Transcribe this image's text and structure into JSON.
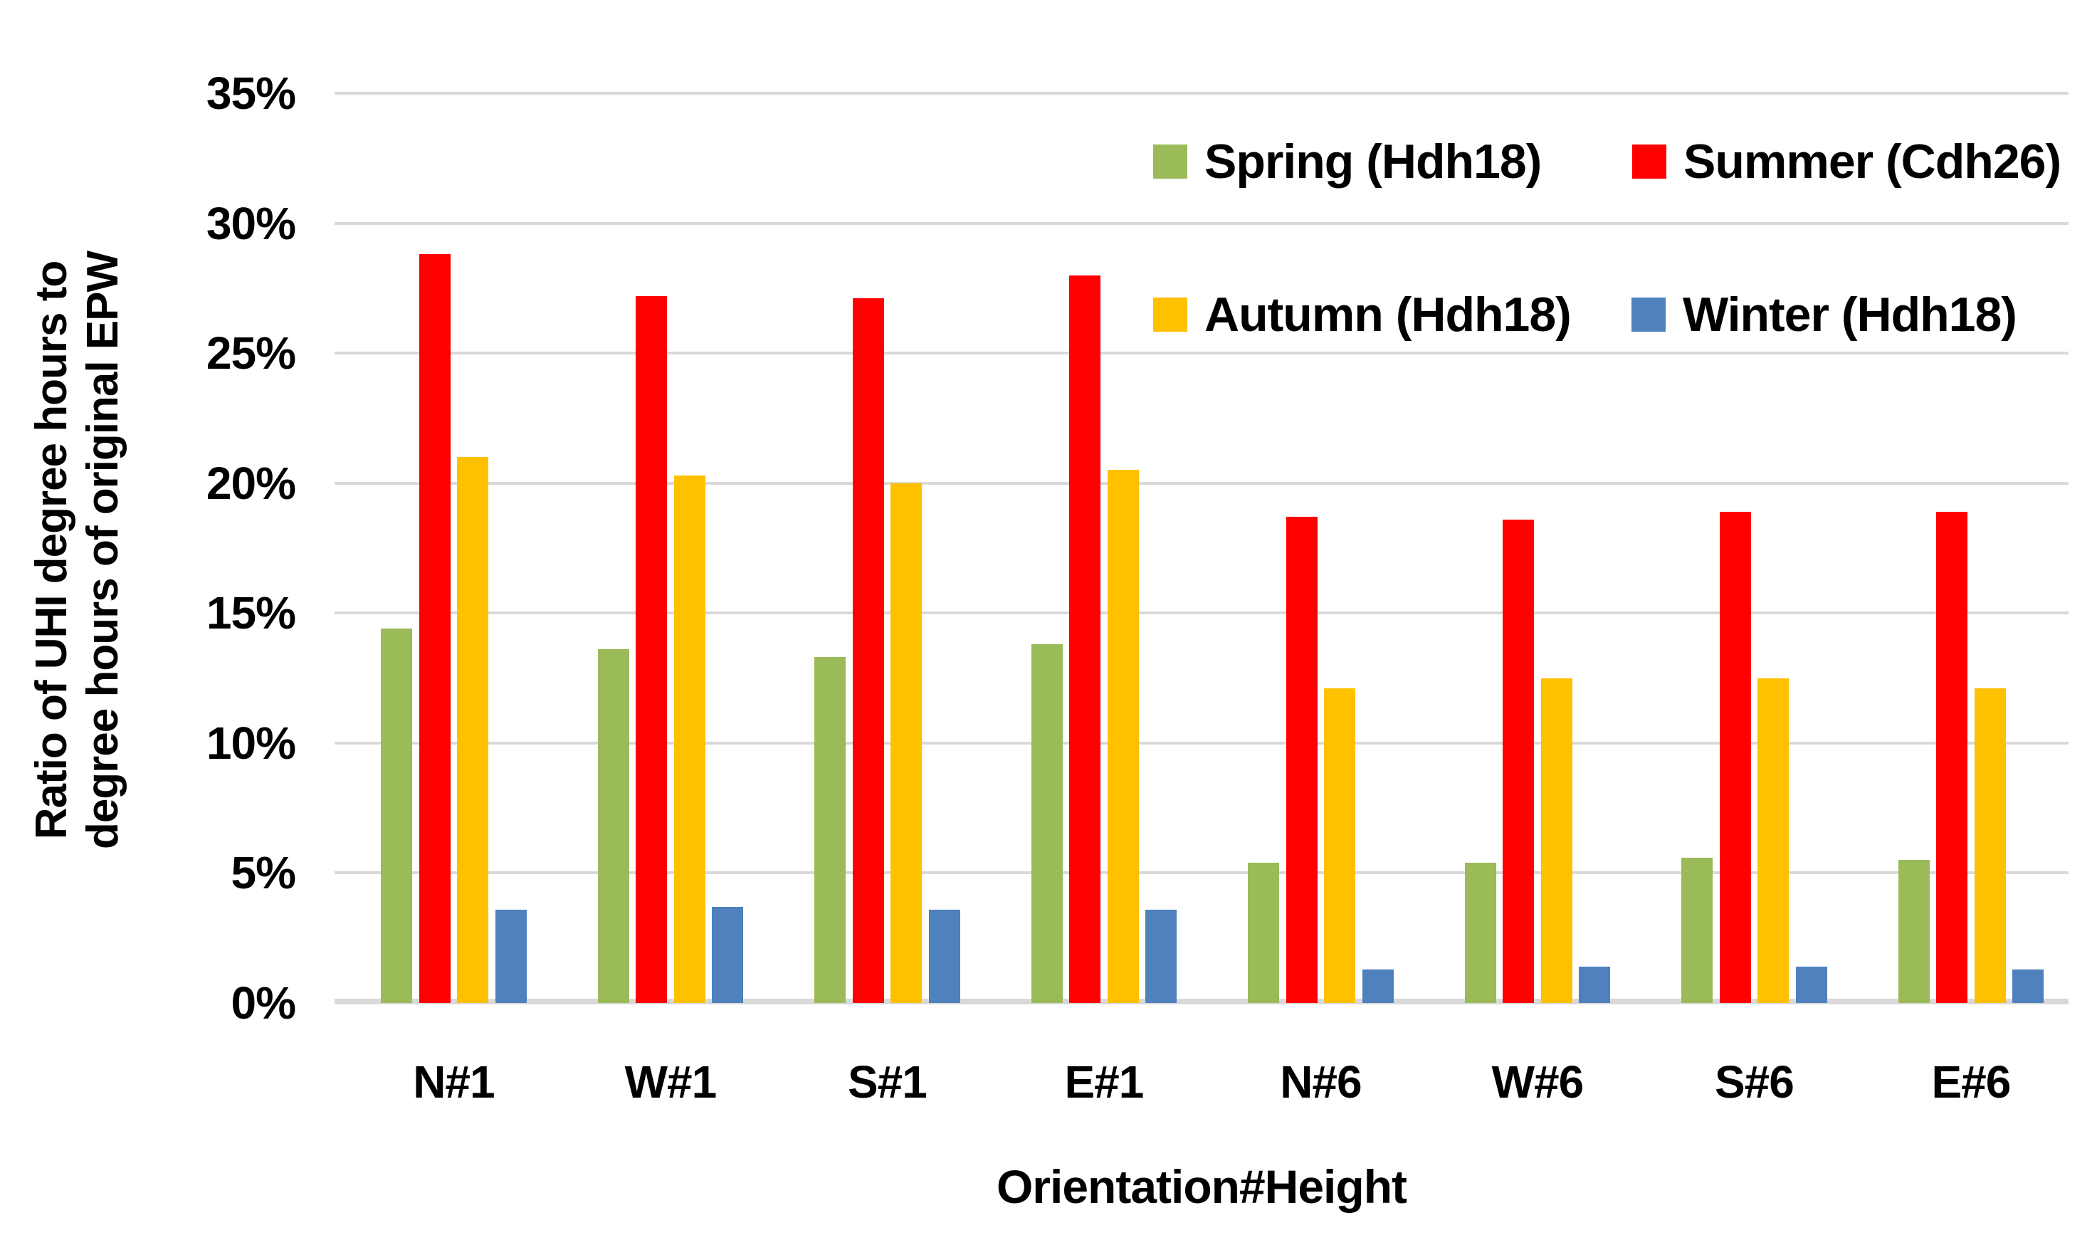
{
  "chart_data": {
    "type": "bar",
    "title": "",
    "xlabel": "Orientation#Height",
    "ylabel_lines": [
      "Ratio of UHI degree hours to",
      "degree hours of original EPW"
    ],
    "categories": [
      "N#1",
      "W#1",
      "S#1",
      "E#1",
      "N#6",
      "W#6",
      "S#6",
      "E#6"
    ],
    "series": [
      {
        "name": "Spring (Hdh18)",
        "color": "#9BBB59",
        "values": [
          14.4,
          13.6,
          13.3,
          13.8,
          5.4,
          5.4,
          5.6,
          5.5
        ]
      },
      {
        "name": "Summer (Cdh26)",
        "color": "#FF0000",
        "values": [
          28.8,
          27.2,
          27.1,
          28.0,
          18.7,
          18.6,
          18.9,
          18.9
        ]
      },
      {
        "name": "Autumn (Hdh18)",
        "color": "#FFC000",
        "values": [
          21.0,
          20.3,
          20.0,
          20.5,
          12.1,
          12.5,
          12.5,
          12.1
        ]
      },
      {
        "name": "Winter (Hdh18)",
        "color": "#4F81BD",
        "values": [
          3.6,
          3.7,
          3.6,
          3.6,
          1.3,
          1.4,
          1.4,
          1.3
        ]
      }
    ],
    "y_axis": {
      "min": 0,
      "max": 35,
      "step": 5,
      "unit": "%",
      "tick_labels": [
        "35%",
        "30%",
        "25%",
        "20%",
        "15%",
        "10%",
        "5%",
        "0%"
      ]
    },
    "grid": true,
    "gridline_color": "#D9D9D9",
    "axis_line_color": "#D9D9D9",
    "text_color": "#000000",
    "background_color": "#FFFFFF",
    "legend_position": "top-right-inside"
  }
}
